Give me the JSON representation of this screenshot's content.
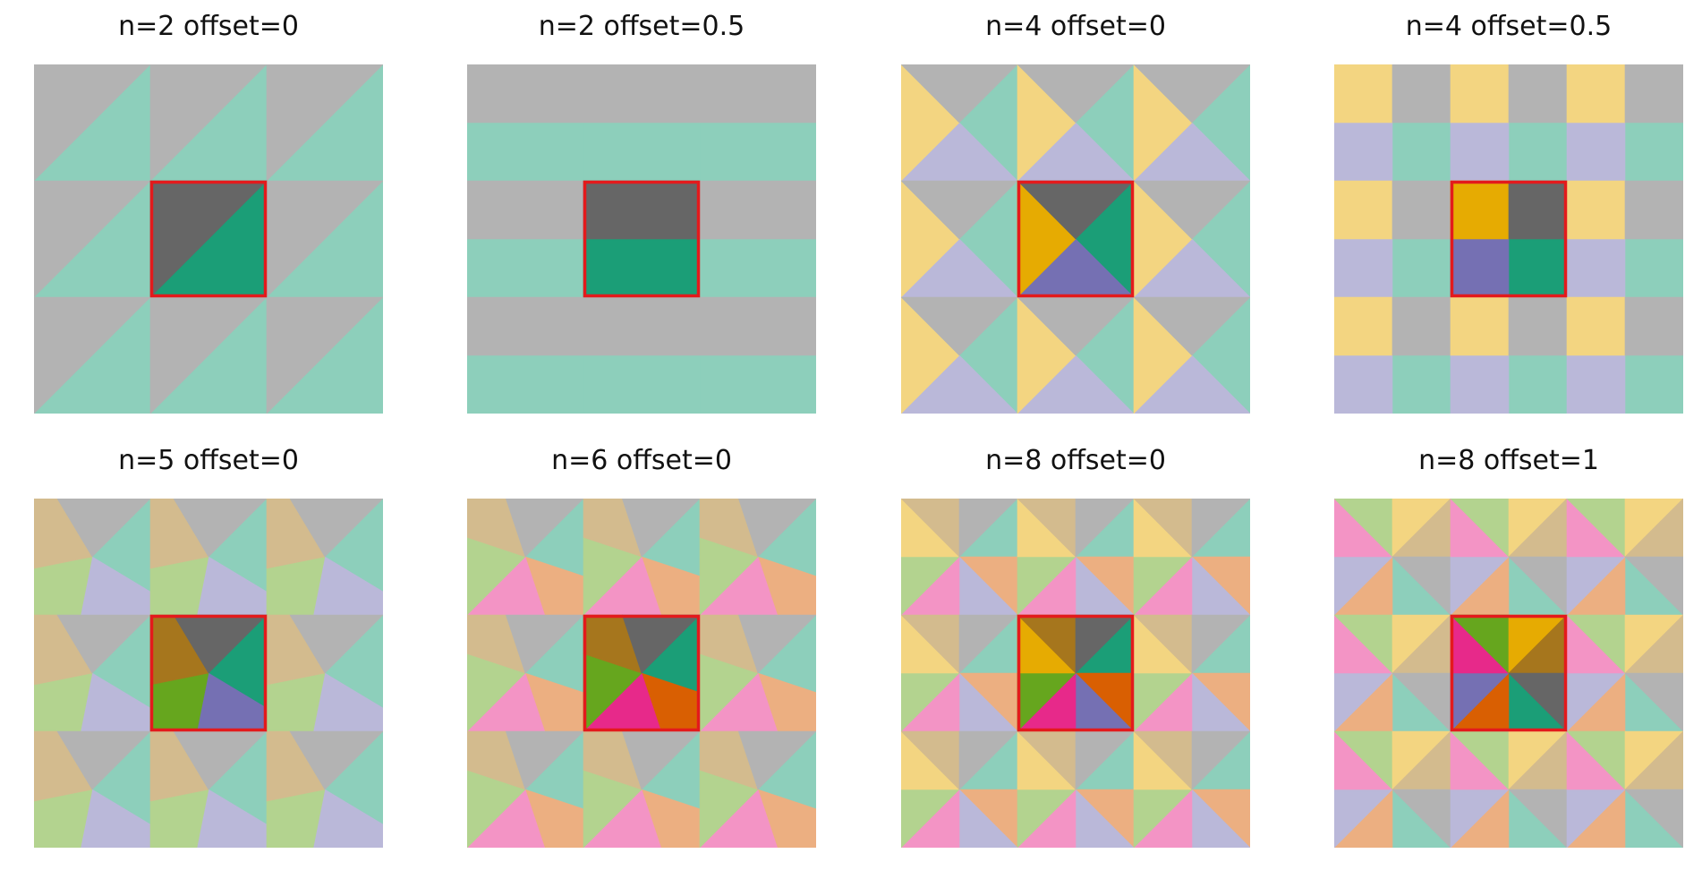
{
  "figure": {
    "panels": [
      {
        "title": "n=2 offset=0",
        "n": 2,
        "offset": 0
      },
      {
        "title": "n=2 offset=0.5",
        "n": 2,
        "offset": 0.5
      },
      {
        "title": "n=4 offset=0",
        "n": 4,
        "offset": 0
      },
      {
        "title": "n=4 offset=0.5",
        "n": 4,
        "offset": 0.5
      },
      {
        "title": "n=5 offset=0",
        "n": 5,
        "offset": 0
      },
      {
        "title": "n=6 offset=0",
        "n": 6,
        "offset": 0
      },
      {
        "title": "n=8 offset=0",
        "n": 8,
        "offset": 0
      },
      {
        "title": "n=8 offset=1",
        "n": 8,
        "offset": 1
      }
    ],
    "palette": [
      "#1b9e77",
      "#d95f02",
      "#7570b3",
      "#e7298a",
      "#66a61e",
      "#e6ab02",
      "#a6761d",
      "#666666"
    ],
    "palette_by_n": {
      "2": [
        "#1b9e77",
        "#666666"
      ],
      "4": [
        "#1b9e77",
        "#7570b3",
        "#e6ab02",
        "#666666"
      ],
      "5": [
        "#1b9e77",
        "#7570b3",
        "#66a61e",
        "#a6761d",
        "#666666"
      ],
      "6": [
        "#1b9e77",
        "#d95f02",
        "#e7298a",
        "#66a61e",
        "#a6761d",
        "#666666"
      ],
      "8": [
        "#1b9e77",
        "#d95f02",
        "#7570b3",
        "#e7298a",
        "#66a61e",
        "#e6ab02",
        "#a6761d",
        "#666666"
      ]
    },
    "highlight_color": "#e31a1c",
    "grid": "3x3 tiles, centre tile highlighted"
  }
}
